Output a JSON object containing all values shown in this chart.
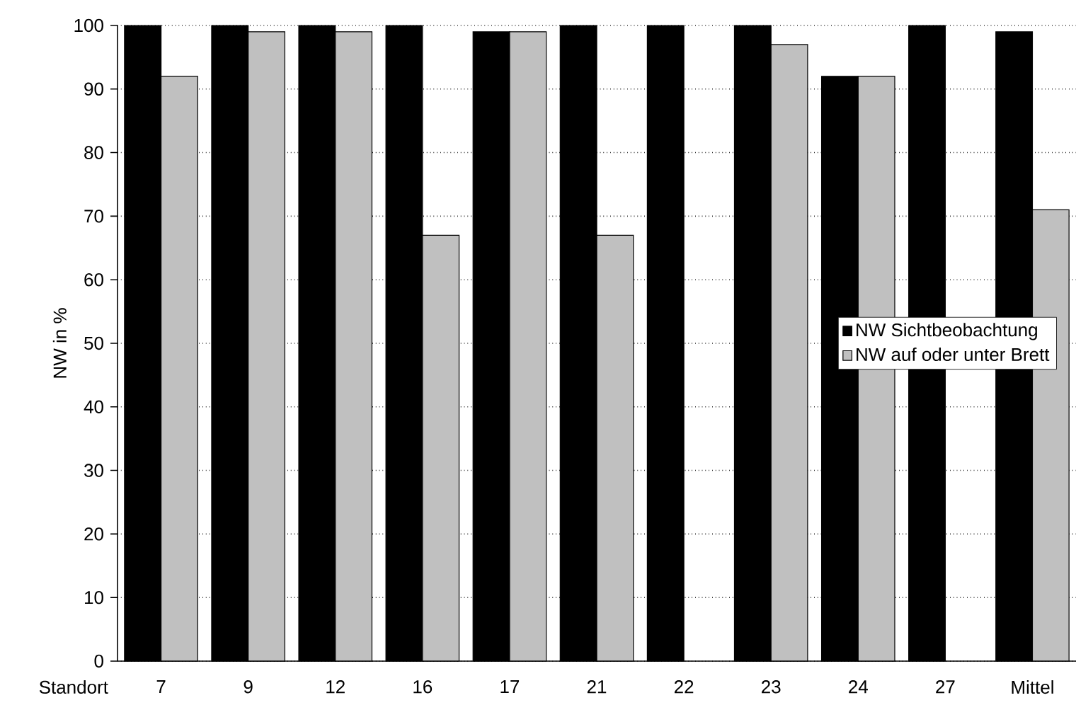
{
  "chart_data": {
    "type": "bar",
    "xlabel": "Standort",
    "ylabel": "NW in %",
    "categories": [
      "7",
      "9",
      "12",
      "16",
      "17",
      "21",
      "22",
      "23",
      "24",
      "27",
      "Mittel"
    ],
    "series": [
      {
        "name": "NW Sichtbeobachtung",
        "color": "#000000",
        "values": [
          100,
          100,
          100,
          100,
          99,
          100,
          100,
          100,
          92,
          100,
          99
        ]
      },
      {
        "name": "NW auf oder unter Brett",
        "color": "#c0c0c0",
        "values": [
          92,
          99,
          99,
          67,
          99,
          67,
          null,
          97,
          92,
          null,
          71
        ]
      }
    ],
    "ylim": [
      0,
      100
    ],
    "yticks": [
      0,
      10,
      20,
      30,
      40,
      50,
      60,
      70,
      80,
      90,
      100
    ],
    "grid": "y",
    "legend": "right"
  }
}
